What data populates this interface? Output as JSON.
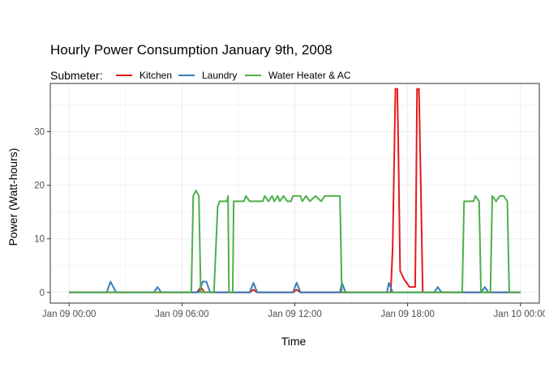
{
  "chart_data": {
    "type": "line",
    "title": "Hourly Power Consumption January 9th, 2008",
    "xlabel": "Time",
    "ylabel": "Power (Watt-hours)",
    "legend": {
      "title": "Submeter:",
      "position": "top-left"
    },
    "grid": true,
    "xlim_hours": [
      -1,
      25
    ],
    "ylim": [
      -2,
      39
    ],
    "x_ticks": [
      {
        "hour": 0,
        "label": "Jan 09 00:00"
      },
      {
        "hour": 6,
        "label": "Jan 09 06:00"
      },
      {
        "hour": 12,
        "label": "Jan 09 12:00"
      },
      {
        "hour": 18,
        "label": "Jan 09 18:00"
      },
      {
        "hour": 24,
        "label": "Jan 10 00:00"
      }
    ],
    "y_ticks": [
      0,
      10,
      20,
      30
    ],
    "series": [
      {
        "name": "Kitchen",
        "color": "#e41a1c",
        "points": [
          [
            0,
            0
          ],
          [
            6.8,
            0
          ],
          [
            7,
            1
          ],
          [
            7.2,
            0
          ],
          [
            9.6,
            0
          ],
          [
            9.8,
            0.5
          ],
          [
            10,
            0
          ],
          [
            11.9,
            0
          ],
          [
            12.1,
            0.5
          ],
          [
            12.3,
            0
          ],
          [
            17.1,
            0
          ],
          [
            17.2,
            8
          ],
          [
            17.3,
            28
          ],
          [
            17.35,
            38
          ],
          [
            17.45,
            38
          ],
          [
            17.5,
            28
          ],
          [
            17.6,
            4
          ],
          [
            17.8,
            2.5
          ],
          [
            18.0,
            1.5
          ],
          [
            18.1,
            1
          ],
          [
            18.4,
            1
          ],
          [
            18.45,
            18
          ],
          [
            18.5,
            38
          ],
          [
            18.6,
            38
          ],
          [
            18.7,
            20
          ],
          [
            18.8,
            0
          ],
          [
            24,
            0
          ]
        ]
      },
      {
        "name": "Laundry",
        "color": "#377eb8",
        "points": [
          [
            0,
            0
          ],
          [
            2.0,
            0
          ],
          [
            2.2,
            2
          ],
          [
            2.5,
            0
          ],
          [
            4.5,
            0
          ],
          [
            4.7,
            1
          ],
          [
            4.9,
            0
          ],
          [
            6.9,
            0
          ],
          [
            7.1,
            2
          ],
          [
            7.3,
            2
          ],
          [
            7.5,
            0
          ],
          [
            9.6,
            0
          ],
          [
            9.8,
            1.8
          ],
          [
            10.0,
            0
          ],
          [
            11.9,
            0
          ],
          [
            12.1,
            1.8
          ],
          [
            12.3,
            0
          ],
          [
            14.4,
            0
          ],
          [
            14.5,
            1.8
          ],
          [
            14.7,
            0
          ],
          [
            16.9,
            0
          ],
          [
            17.0,
            1.8
          ],
          [
            17.2,
            0
          ],
          [
            19.4,
            0
          ],
          [
            19.6,
            1
          ],
          [
            19.8,
            0
          ],
          [
            21.9,
            0
          ],
          [
            22.1,
            1
          ],
          [
            22.3,
            0
          ],
          [
            24,
            0
          ]
        ]
      },
      {
        "name": "Water Heater & AC",
        "color": "#4daf4a",
        "points": [
          [
            0,
            0
          ],
          [
            6.5,
            0
          ],
          [
            6.6,
            18
          ],
          [
            6.75,
            19
          ],
          [
            6.9,
            18
          ],
          [
            7.0,
            0
          ],
          [
            7.7,
            0
          ],
          [
            7.9,
            16
          ],
          [
            8.0,
            17
          ],
          [
            8.4,
            17
          ],
          [
            8.45,
            18
          ],
          [
            8.5,
            0
          ],
          [
            8.7,
            0
          ],
          [
            8.75,
            17
          ],
          [
            9.0,
            17
          ],
          [
            9.3,
            17
          ],
          [
            9.4,
            18
          ],
          [
            9.6,
            17
          ],
          [
            10.3,
            17
          ],
          [
            10.4,
            18
          ],
          [
            10.6,
            17
          ],
          [
            10.8,
            18
          ],
          [
            10.9,
            17
          ],
          [
            11.1,
            18
          ],
          [
            11.2,
            17
          ],
          [
            11.4,
            18
          ],
          [
            11.6,
            17
          ],
          [
            11.8,
            17
          ],
          [
            11.9,
            18
          ],
          [
            12.3,
            18
          ],
          [
            12.4,
            17
          ],
          [
            12.6,
            18
          ],
          [
            12.8,
            17
          ],
          [
            13.1,
            18
          ],
          [
            13.4,
            17
          ],
          [
            13.6,
            18
          ],
          [
            14.4,
            18
          ],
          [
            14.5,
            0
          ],
          [
            20.9,
            0
          ],
          [
            21.0,
            17
          ],
          [
            21.5,
            17
          ],
          [
            21.6,
            18
          ],
          [
            21.8,
            17
          ],
          [
            21.9,
            0
          ],
          [
            22.4,
            0
          ],
          [
            22.5,
            18
          ],
          [
            22.7,
            17
          ],
          [
            22.9,
            18
          ],
          [
            23.1,
            18
          ],
          [
            23.3,
            17
          ],
          [
            23.4,
            0
          ],
          [
            24,
            0
          ]
        ]
      }
    ]
  }
}
